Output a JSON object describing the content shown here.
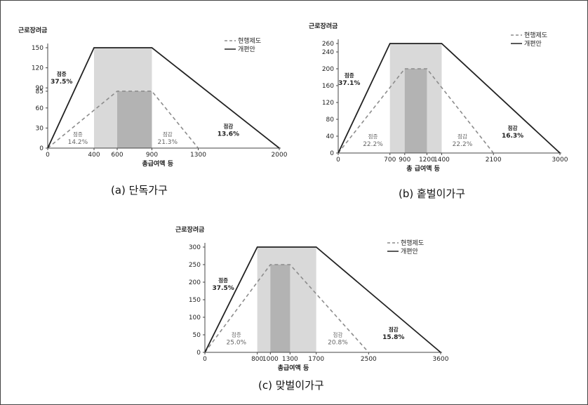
{
  "colors": {
    "outer_band": "#d9d9d9",
    "inner_band": "#b3b3b3",
    "reform_line": "#222222",
    "current_line": "#8c8c8c",
    "axis": "#444444"
  },
  "chart_data": [
    {
      "type": "line",
      "caption": "(a) 단독가구",
      "ylabel": "근로장려금",
      "xlabel": "총급여액 등",
      "xlim": [
        0,
        2000
      ],
      "ylim": [
        0,
        150
      ],
      "xticks": [
        0,
        400,
        600,
        900,
        1300,
        2000
      ],
      "yticks": [
        0,
        30,
        60,
        85,
        90,
        120,
        150
      ],
      "series": [
        {
          "name": "현행제도",
          "style": "dashed",
          "x": [
            0,
            600,
            900,
            1300
          ],
          "y": [
            0,
            85,
            85,
            0
          ]
        },
        {
          "name": "개편안",
          "style": "solid",
          "x": [
            0,
            400,
            900,
            2000
          ],
          "y": [
            0,
            150,
            150,
            0
          ]
        }
      ],
      "bands": [
        {
          "range": [
            400,
            900
          ],
          "top": 150,
          "kind": "outer"
        },
        {
          "range": [
            600,
            900
          ],
          "top": 85,
          "kind": "inner"
        }
      ],
      "annotations": [
        {
          "lines": [
            "점증",
            "37.5%"
          ],
          "x": 120,
          "y": 108,
          "bold": true
        },
        {
          "lines": [
            "점증",
            "14.2%"
          ],
          "x": 260,
          "y": 18,
          "bold": false
        },
        {
          "lines": [
            "점감",
            "21.3%"
          ],
          "x": 1035,
          "y": 18,
          "bold": false
        },
        {
          "lines": [
            "점감",
            "13.6%"
          ],
          "x": 1560,
          "y": 30,
          "bold": true
        }
      ]
    },
    {
      "type": "line",
      "caption": "(b) 홑벌이가구",
      "ylabel": "근로장려금",
      "xlabel": "총 급여액 등",
      "xlim": [
        0,
        3000
      ],
      "ylim": [
        0,
        260
      ],
      "xticks": [
        0,
        700,
        900,
        1200,
        1400,
        2100,
        3000
      ],
      "yticks": [
        0,
        40,
        80,
        120,
        160,
        200,
        240,
        260
      ],
      "series": [
        {
          "name": "현행제도",
          "style": "dashed",
          "x": [
            0,
            900,
            1200,
            2100
          ],
          "y": [
            0,
            200,
            200,
            0
          ]
        },
        {
          "name": "개편안",
          "style": "solid",
          "x": [
            0,
            700,
            1400,
            3000
          ],
          "y": [
            0,
            260,
            260,
            0
          ]
        }
      ],
      "bands": [
        {
          "range": [
            700,
            1400
          ],
          "top": 260,
          "kind": "outer"
        },
        {
          "range": [
            900,
            1200
          ],
          "top": 200,
          "kind": "inner"
        }
      ],
      "annotations": [
        {
          "lines": [
            "점증",
            "37.1%"
          ],
          "x": 150,
          "y": 180,
          "bold": true
        },
        {
          "lines": [
            "점증",
            "22.2%"
          ],
          "x": 470,
          "y": 35,
          "bold": false
        },
        {
          "lines": [
            "점감",
            "22.2%"
          ],
          "x": 1680,
          "y": 35,
          "bold": false
        },
        {
          "lines": [
            "점감",
            "16.3%"
          ],
          "x": 2360,
          "y": 55,
          "bold": true
        }
      ]
    },
    {
      "type": "line",
      "caption": "(c) 맞벌이가구",
      "ylabel": "근로장려금",
      "xlabel": "총급여액 등",
      "xlim": [
        0,
        3600
      ],
      "ylim": [
        0,
        300
      ],
      "xticks": [
        0,
        800,
        1000,
        1300,
        1700,
        2500,
        3600
      ],
      "yticks": [
        0,
        50,
        100,
        150,
        200,
        250,
        300
      ],
      "series": [
        {
          "name": "현행제도",
          "style": "dashed",
          "x": [
            0,
            1000,
            1300,
            2500
          ],
          "y": [
            0,
            250,
            250,
            0
          ]
        },
        {
          "name": "개편안",
          "style": "solid",
          "x": [
            0,
            800,
            1700,
            3600
          ],
          "y": [
            0,
            300,
            300,
            0
          ]
        }
      ],
      "bands": [
        {
          "range": [
            800,
            1700
          ],
          "top": 300,
          "kind": "outer"
        },
        {
          "range": [
            1000,
            1300
          ],
          "top": 250,
          "kind": "inner"
        }
      ],
      "annotations": [
        {
          "lines": [
            "점증",
            "37.5%"
          ],
          "x": 280,
          "y": 200,
          "bold": true
        },
        {
          "lines": [
            "점증",
            "25.0%"
          ],
          "x": 480,
          "y": 45,
          "bold": false
        },
        {
          "lines": [
            "점감",
            "20.8%"
          ],
          "x": 2030,
          "y": 45,
          "bold": false
        },
        {
          "lines": [
            "점감",
            "15.8%"
          ],
          "x": 2880,
          "y": 60,
          "bold": true
        }
      ]
    }
  ]
}
